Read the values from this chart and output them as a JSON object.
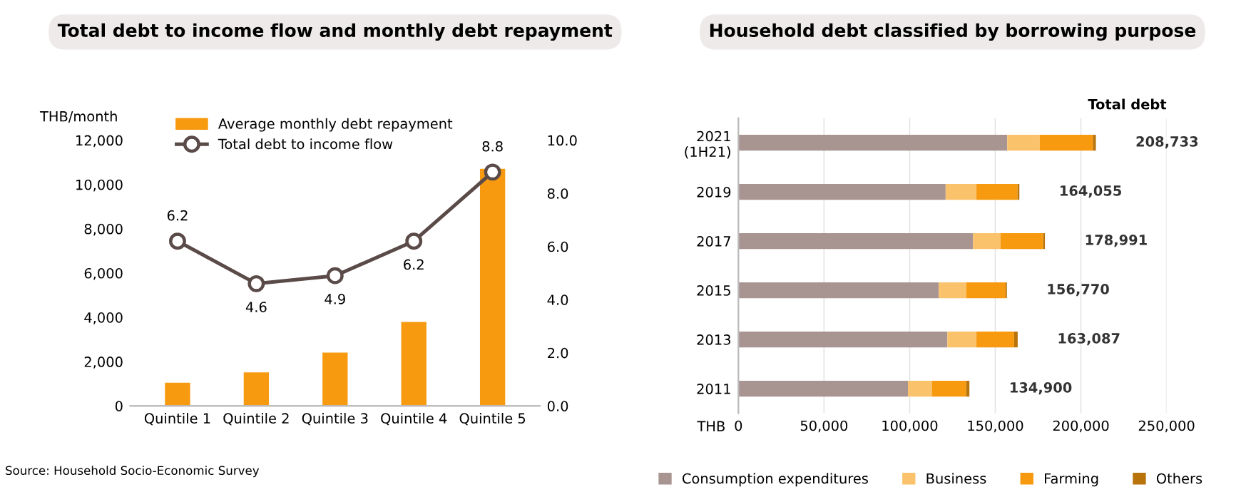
{
  "chart_data": [
    {
      "type": "bar",
      "title": "Total debt to income flow and monthly debt repayment",
      "ylabel": "THB/month",
      "categories": [
        "Quintile 1",
        "Quintile 2",
        "Quintile 3",
        "Quintile 4",
        "Quintile 5"
      ],
      "series": [
        {
          "name": "Average monthly debt repayment",
          "type": "bar",
          "color": "#f79a0f",
          "values": [
            1050,
            1510,
            2410,
            3790,
            10710
          ]
        },
        {
          "name": "Total debt to income flow",
          "type": "line",
          "axis": "y2",
          "color": "#5a4a48",
          "marker": "circle",
          "values": [
            6.2,
            4.6,
            4.9,
            6.2,
            8.8
          ],
          "value_labels": [
            "6.2",
            "4.6",
            "4.9",
            "6.2",
            "8.8"
          ]
        }
      ],
      "ylim": [
        0,
        12000
      ],
      "yticks": [
        0,
        {
          "value": 2000,
          "label": "2,000"
        },
        {
          "value": 4000,
          "label": "4,000"
        },
        {
          "value": 6000,
          "label": "6,000"
        },
        {
          "value": 8000,
          "label": "8,000"
        },
        {
          "value": 10000,
          "label": "10,000"
        },
        {
          "value": 12000,
          "label": "12,000"
        }
      ],
      "y2lim": [
        0,
        10
      ],
      "y2ticks": [
        {
          "value": 0,
          "label": "0.0"
        },
        {
          "value": 2,
          "label": "2.0"
        },
        {
          "value": 4,
          "label": "4.0"
        },
        {
          "value": 6,
          "label": "6.0"
        },
        {
          "value": 8,
          "label": "8.0"
        },
        {
          "value": 10,
          "label": "10.0"
        }
      ],
      "legend": "top",
      "grid": false,
      "annotations": [
        "Source: Household Socio-Economic Survey"
      ]
    },
    {
      "type": "bar",
      "orientation": "horizontal",
      "stacked": true,
      "title": "Household debt classified by borrowing purpose",
      "xlabel": "THB",
      "categories": [
        "2021\n(1H21)",
        "2019",
        "2017",
        "2015",
        "2013",
        "2011"
      ],
      "series": [
        {
          "name": "Consumption expenditures",
          "color": "#a89592",
          "values": [
            157000,
            121000,
            137000,
            117000,
            122000,
            99000
          ]
        },
        {
          "name": "Business",
          "color": "#fbc26c",
          "values": [
            19000,
            18000,
            16000,
            16000,
            17000,
            14000
          ]
        },
        {
          "name": "Farming",
          "color": "#f79a0f",
          "values": [
            31000,
            24000,
            25000,
            23000,
            22000,
            20000
          ]
        },
        {
          "name": "Others",
          "color": "#b8730a",
          "values": [
            1733,
            1055,
            991,
            770,
            2087,
            1900
          ]
        }
      ],
      "totals": [
        "208,733",
        "164,055",
        "178,991",
        "156,770",
        "163,087",
        "134,900"
      ],
      "xlim": [
        0,
        250000
      ],
      "xticks": [
        0,
        {
          "value": 50000,
          "label": "50,000"
        },
        {
          "value": 100000,
          "label": "100,000"
        },
        {
          "value": 150000,
          "label": "150,000"
        },
        {
          "value": 200000,
          "label": "200,000"
        },
        {
          "value": 250000,
          "label": "250,000"
        }
      ],
      "grid": "x",
      "legend": "bottom",
      "annotations": [
        "Total debt"
      ]
    }
  ]
}
